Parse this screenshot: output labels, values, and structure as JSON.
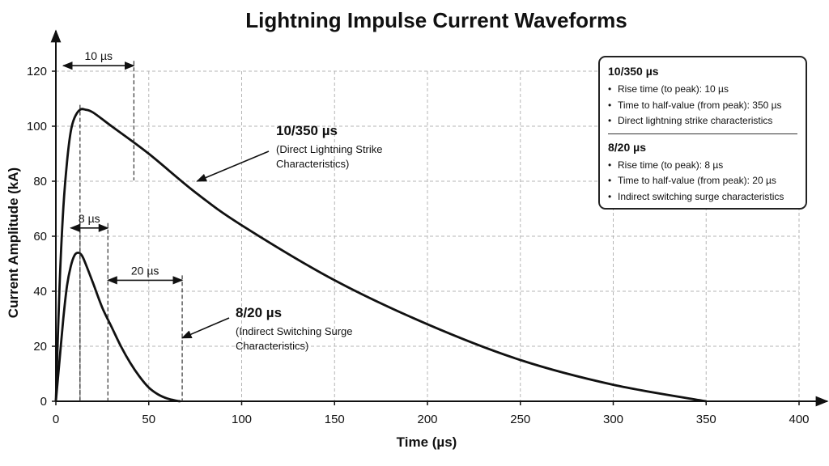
{
  "chart_data": {
    "type": "line",
    "title": "Lightning Impulse Current Waveforms",
    "xlabel": "Time (µs)",
    "ylabel": "Current Amplitude (kA)",
    "xlim": [
      0,
      400
    ],
    "ylim": [
      0,
      120
    ],
    "x_ticks": [
      0,
      50,
      100,
      150,
      200,
      250,
      300,
      350,
      400
    ],
    "y_ticks": [
      0,
      20,
      40,
      60,
      80,
      100,
      120
    ],
    "grid": true,
    "series": [
      {
        "name": "10/350 µs",
        "color": "#111111",
        "x": [
          0,
          2,
          4,
          6,
          8,
          10,
          13,
          16,
          20,
          30,
          50,
          75,
          100,
          150,
          200,
          250,
          300,
          350
        ],
        "y": [
          0,
          42,
          70,
          87,
          98,
          103,
          106,
          106,
          105,
          100,
          90,
          76,
          64,
          44,
          28,
          15,
          6,
          0
        ]
      },
      {
        "name": "8/20 µs",
        "color": "#111111",
        "x": [
          0,
          2,
          4,
          6,
          8,
          10,
          12,
          14,
          16,
          20,
          25,
          30,
          35,
          40,
          45,
          50,
          55,
          60,
          65,
          67
        ],
        "y": [
          0,
          15,
          30,
          42,
          49,
          53,
          54,
          53,
          50,
          43,
          34,
          27,
          20,
          14,
          9,
          5,
          2.5,
          1,
          0.2,
          0
        ]
      }
    ],
    "dimensions": [
      {
        "label": "10 µs",
        "from": 4,
        "to": 42,
        "y": 122
      },
      {
        "label": "8 µs",
        "from": 8,
        "to": 28,
        "y": 63
      },
      {
        "label": "20 µs",
        "from": 28,
        "to": 68,
        "y": 44
      }
    ],
    "annotations": [
      {
        "title": "10/350 µs",
        "lines": [
          "(Direct Lightning Strike",
          "Characteristics)"
        ],
        "arrow_to": [
          76,
          80
        ]
      },
      {
        "title": "8/20 µs",
        "lines": [
          "(Indirect Switching Surge",
          "Characteristics)"
        ],
        "arrow_to": [
          68,
          23
        ]
      }
    ],
    "legend": {
      "position": "top-right",
      "groups": [
        {
          "title": "10/350 µs",
          "items": [
            "Rise time (to peak): 10 µs",
            "Time to half-value (from peak): 350 µs",
            "Direct lightning strike characteristics"
          ]
        },
        {
          "title": "8/20 µs",
          "items": [
            "Rise time (to peak): 8 µs",
            "Time to half-value (from peak): 20 µs",
            "Indirect switching surge characteristics"
          ]
        }
      ]
    }
  }
}
